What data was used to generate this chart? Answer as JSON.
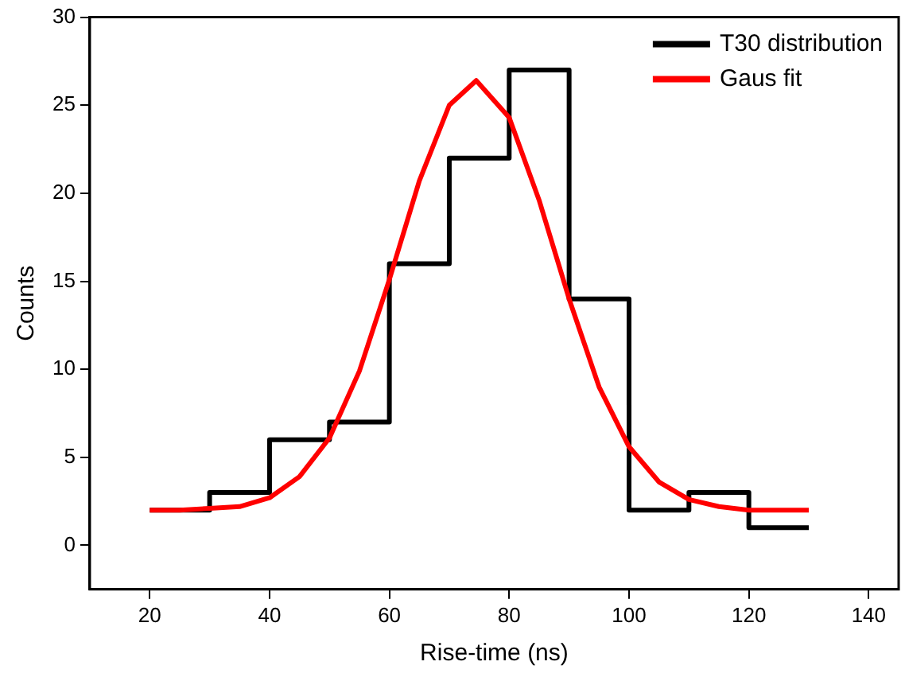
{
  "chart_data": {
    "type": "step",
    "xlabel": "Rise-time (ns)",
    "ylabel": "Counts",
    "xlim": [
      10,
      145
    ],
    "xticks": [
      20,
      40,
      60,
      80,
      100,
      120,
      140
    ],
    "ylim": [
      -2.5,
      30
    ],
    "yticks": [
      0,
      5,
      10,
      15,
      20,
      25,
      30
    ],
    "grid": false,
    "legend": "top right",
    "marker": "none",
    "line_style": "solid",
    "series": [
      {
        "name": "T30 distribution",
        "type": "step",
        "color": "#000000",
        "x": [
          20,
          30,
          40,
          50,
          60,
          70,
          80,
          90,
          100,
          110,
          120,
          130
        ],
        "values": [
          2,
          3,
          6,
          7,
          16,
          22,
          27,
          14,
          2,
          3,
          1,
          1
        ]
      },
      {
        "name": "Gaus fit",
        "type": "line",
        "color": "#ff0000",
        "x": [
          20,
          25,
          30,
          35,
          40,
          45,
          50,
          55,
          60,
          65,
          70,
          74.5,
          80,
          85,
          90,
          95,
          100,
          105,
          110,
          115,
          120,
          125,
          130
        ],
        "values": [
          2.0,
          2.0,
          2.1,
          2.2,
          2.7,
          3.9,
          6.1,
          9.9,
          15.1,
          20.7,
          25.0,
          26.4,
          24.3,
          19.6,
          14.0,
          9.0,
          5.6,
          3.6,
          2.6,
          2.2,
          2.0,
          2.0,
          2.0
        ]
      }
    ]
  }
}
